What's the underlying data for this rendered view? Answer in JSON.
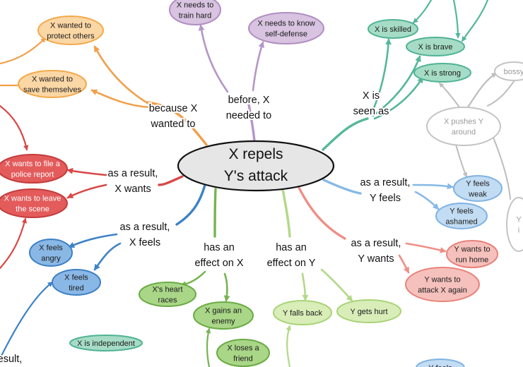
{
  "center": {
    "lines": [
      "X repels",
      "Y's attack"
    ]
  },
  "colors": {
    "orange": {
      "fill": "#fbd7a6",
      "stroke": "#f4a94a",
      "edge": "#f0a04a"
    },
    "purple": {
      "fill": "#d8c3e0",
      "stroke": "#b08ec2",
      "edge": "#b596c8"
    },
    "teal": {
      "fill": "#a6dcc6",
      "stroke": "#4fb394",
      "edge": "#56b79a"
    },
    "gray": {
      "fill": "#ffffff",
      "stroke": "#c4c4c4",
      "edge": "#bdbdbd"
    },
    "red": {
      "fill": "#e35b5b",
      "stroke": "#c43d3d",
      "edge": "#d94848"
    },
    "blue_dark": {
      "fill": "#8ab8e6",
      "stroke": "#3d7fc4",
      "edge": "#3d82c7"
    },
    "blue_light": {
      "fill": "#c2dcf3",
      "stroke": "#7fb3e3",
      "edge": "#86b9e6"
    },
    "green_dark": {
      "fill": "#a9d687",
      "stroke": "#6aab45",
      "edge": "#76b451"
    },
    "green_light": {
      "fill": "#d8edb8",
      "stroke": "#a9d377",
      "edge": "#b2d987"
    },
    "pink": {
      "fill": "#f6c1bd",
      "stroke": "#e8837b",
      "edge": "#ee8f86"
    }
  },
  "relations": [
    {
      "id": "because",
      "lines": [
        "because X",
        "wanted to"
      ]
    },
    {
      "id": "before",
      "lines": [
        "before, X",
        "needed to"
      ]
    },
    {
      "id": "seen_as",
      "lines": [
        "X is",
        "seen as"
      ]
    },
    {
      "id": "x_wants",
      "lines": [
        "as a result,",
        "X wants"
      ]
    },
    {
      "id": "y_feels",
      "lines": [
        "as a result,",
        "Y feels"
      ]
    },
    {
      "id": "x_feels",
      "lines": [
        "as a result,",
        "X feels"
      ]
    },
    {
      "id": "effect_x",
      "lines": [
        "has an",
        "effect on X"
      ]
    },
    {
      "id": "effect_y",
      "lines": [
        "has an",
        "effect on Y"
      ]
    },
    {
      "id": "y_wants",
      "lines": [
        "as a result,",
        "Y wants"
      ]
    },
    {
      "id": "partial_result",
      "lines": [
        "esult,"
      ]
    }
  ],
  "nodes": [
    {
      "id": "protect",
      "lines": [
        "X wanted to",
        "protect others"
      ],
      "color": "orange"
    },
    {
      "id": "save",
      "lines": [
        "X wanted to",
        "save themselves"
      ],
      "color": "orange"
    },
    {
      "id": "train",
      "lines": [
        "X needs to",
        "train hard"
      ],
      "color": "purple"
    },
    {
      "id": "selfdef",
      "lines": [
        "X needs to know",
        "self-defense"
      ],
      "color": "purple"
    },
    {
      "id": "skilled",
      "lines": [
        "X is skilled"
      ],
      "color": "teal"
    },
    {
      "id": "brave",
      "lines": [
        "X is brave"
      ],
      "color": "teal"
    },
    {
      "id": "strong",
      "lines": [
        "X is strong"
      ],
      "color": "teal"
    },
    {
      "id": "bossy",
      "lines": [
        "bossy"
      ],
      "color": "gray"
    },
    {
      "id": "pushes",
      "lines": [
        "X pushes Y",
        "around"
      ],
      "color": "gray"
    },
    {
      "id": "gray_partial",
      "lines": [
        "Y",
        "i"
      ],
      "color": "gray"
    },
    {
      "id": "police",
      "lines": [
        "X wants to file a",
        "police report"
      ],
      "color": "red"
    },
    {
      "id": "leave",
      "lines": [
        "X wants to leave",
        "the scene"
      ],
      "color": "red"
    },
    {
      "id": "angry",
      "lines": [
        "X feels",
        "angry"
      ],
      "color": "blue_dark"
    },
    {
      "id": "tired",
      "lines": [
        "X feels",
        "tired"
      ],
      "color": "blue_dark"
    },
    {
      "id": "weak",
      "lines": [
        "Y feels",
        "weak"
      ],
      "color": "blue_light"
    },
    {
      "id": "ashamed",
      "lines": [
        "Y feels",
        "ashamed"
      ],
      "color": "blue_light"
    },
    {
      "id": "heart",
      "lines": [
        "X's heart",
        "races"
      ],
      "color": "green_dark"
    },
    {
      "id": "enemy",
      "lines": [
        "X gains an",
        "enemy"
      ],
      "color": "green_dark"
    },
    {
      "id": "friend",
      "lines": [
        "X loses a",
        "friend"
      ],
      "color": "green_dark"
    },
    {
      "id": "fallsback",
      "lines": [
        "Y falls back"
      ],
      "color": "green_light"
    },
    {
      "id": "hurt",
      "lines": [
        "Y gets hurt"
      ],
      "color": "green_light"
    },
    {
      "id": "runhome",
      "lines": [
        "Y wants to",
        "run home"
      ],
      "color": "pink"
    },
    {
      "id": "attackagain",
      "lines": [
        "Y wants to",
        "attack X again"
      ],
      "color": "pink"
    },
    {
      "id": "independent",
      "lines": [
        "X is independent"
      ],
      "color": "teal"
    },
    {
      "id": "yfeels_bottom",
      "lines": [
        "Y feels"
      ],
      "color": "blue_light"
    }
  ]
}
